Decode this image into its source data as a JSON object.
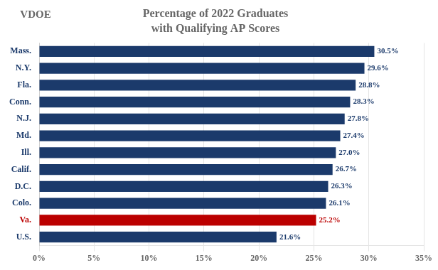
{
  "chart_data": {
    "type": "bar",
    "orientation": "horizontal",
    "title": "Percentage of 2022 Graduates",
    "subtitle": "with Qualifying AP Scores",
    "annotations": [
      {
        "text": "VDOE"
      }
    ],
    "categories": [
      "Mass.",
      "N.Y.",
      "Fla.",
      "Conn.",
      "N.J.",
      "Md.",
      "Ill.",
      "Calif.",
      "D.C.",
      "Colo.",
      "Va.",
      "U.S."
    ],
    "values": [
      30.5,
      29.6,
      28.8,
      28.3,
      27.8,
      27.4,
      27.0,
      26.7,
      26.3,
      26.1,
      25.2,
      21.6
    ],
    "value_labels": [
      "30.5%",
      "29.6%",
      "28.8%",
      "28.3%",
      "27.8%",
      "27.4%",
      "27.0%",
      "26.7%",
      "26.3%",
      "26.1%",
      "25.2%",
      "21.6%"
    ],
    "data_labels": true,
    "colors": [
      "#1b3a6b",
      "#1b3a6b",
      "#1b3a6b",
      "#1b3a6b",
      "#1b3a6b",
      "#1b3a6b",
      "#1b3a6b",
      "#1b3a6b",
      "#1b3a6b",
      "#1b3a6b",
      "#bb0000",
      "#1b3a6b"
    ],
    "xlim": [
      0,
      35
    ],
    "xticks": [
      {
        "value": 0,
        "label": "0%"
      },
      {
        "value": 5,
        "label": "5%"
      },
      {
        "value": 10,
        "label": "10%"
      },
      {
        "value": 15,
        "label": "15%"
      },
      {
        "value": 20,
        "label": "20%"
      },
      {
        "value": 25,
        "label": "25%"
      },
      {
        "value": 30,
        "label": "30%"
      },
      {
        "value": 35,
        "label": "35%"
      }
    ],
    "grid": true
  }
}
